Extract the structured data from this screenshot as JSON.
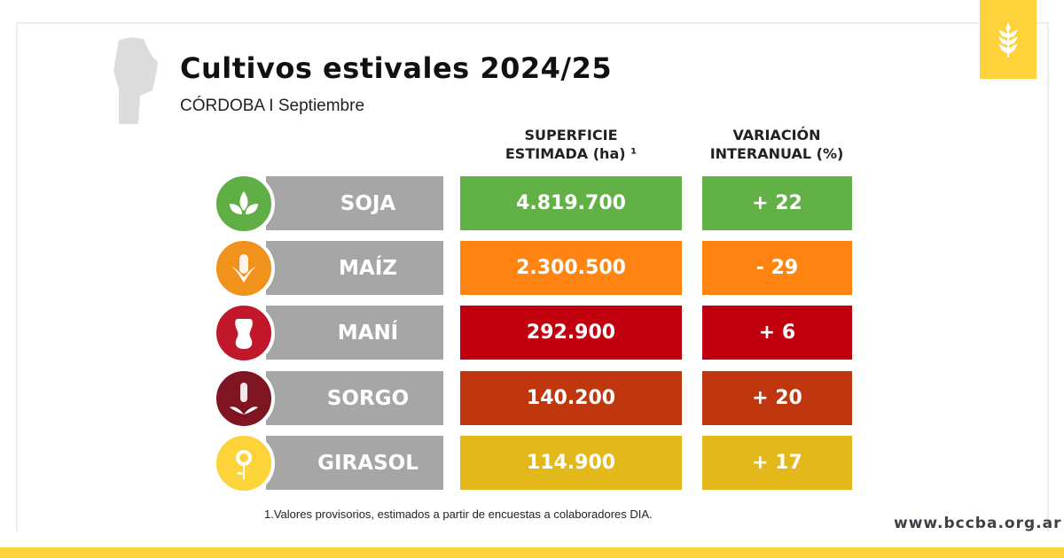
{
  "header": {
    "title": "Cultivos estivales 2024/25",
    "subtitle": "CÓRDOBA I Septiembre"
  },
  "columns": {
    "superficie": "SUPERFICIE",
    "superficie2": "ESTIMADA (ha) ¹",
    "variacion": "VARIACIÓN",
    "variacion2": "INTERANUAL (%)"
  },
  "rows": [
    {
      "crop": "SOJA",
      "area": "4.819.700",
      "variation": "+ 22",
      "color": "#62b146",
      "icon_color": "#5fae46",
      "icon": "soy-leaves-icon"
    },
    {
      "crop": "MAÍZ",
      "area": "2.300.500",
      "variation": "- 29",
      "color": "#ff8412",
      "icon_color": "#f0921c",
      "icon": "corn-icon"
    },
    {
      "crop": "MANÍ",
      "area": "292.900",
      "variation": "+ 6",
      "color": "#c0000f",
      "icon_color": "#c0182a",
      "icon": "peanut-icon"
    },
    {
      "crop": "SORGO",
      "area": "140.200",
      "variation": "+ 20",
      "color": "#c0360f",
      "icon_color": "#7f1520",
      "icon": "sorghum-icon"
    },
    {
      "crop": "GIRASOL",
      "area": "114.900",
      "variation": "+ 17",
      "color": "#e3b81a",
      "icon_color": "#fdd33a",
      "icon": "sunflower-icon"
    }
  ],
  "footnote": "1.Valores provisorios, estimados a partir de encuestas a colaboradores DIA.",
  "website": "www.bccba.org.ar"
}
